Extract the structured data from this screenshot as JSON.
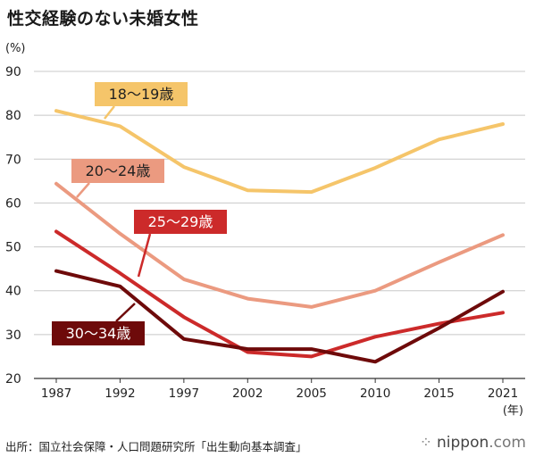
{
  "title": "性交経験のない未婚女性",
  "source": "出所：国立社会保障・人口問題研究所「出生動向基本調査」",
  "logo": {
    "name": "nippon",
    "suffix": ".com"
  },
  "chart_data": {
    "type": "line",
    "ylabel": "(%)",
    "xlabel": "(年)",
    "ylim": [
      20,
      90
    ],
    "yticks": [
      20,
      30,
      40,
      50,
      60,
      70,
      80,
      90
    ],
    "x": [
      "1987",
      "1992",
      "1997",
      "2002",
      "2005",
      "2010",
      "2015",
      "2021"
    ],
    "grid": true,
    "series": [
      {
        "name": "18〜19歳",
        "color": "#f5c56a",
        "values": [
          81.0,
          77.5,
          68.2,
          62.9,
          62.5,
          68.0,
          74.5,
          78.0
        ]
      },
      {
        "name": "20〜24歳",
        "color": "#eb9a80",
        "values": [
          64.4,
          53.0,
          42.6,
          38.2,
          36.3,
          40.0,
          46.5,
          52.7
        ]
      },
      {
        "name": "25〜29歳",
        "color": "#cc2a2a",
        "values": [
          53.5,
          44.0,
          34.0,
          26.0,
          25.0,
          29.5,
          32.5,
          35.0
        ]
      },
      {
        "name": "30〜34歳",
        "color": "#6e0a0a",
        "values": [
          44.5,
          41.0,
          29.0,
          26.7,
          26.7,
          23.8,
          31.5,
          39.8
        ]
      }
    ]
  }
}
